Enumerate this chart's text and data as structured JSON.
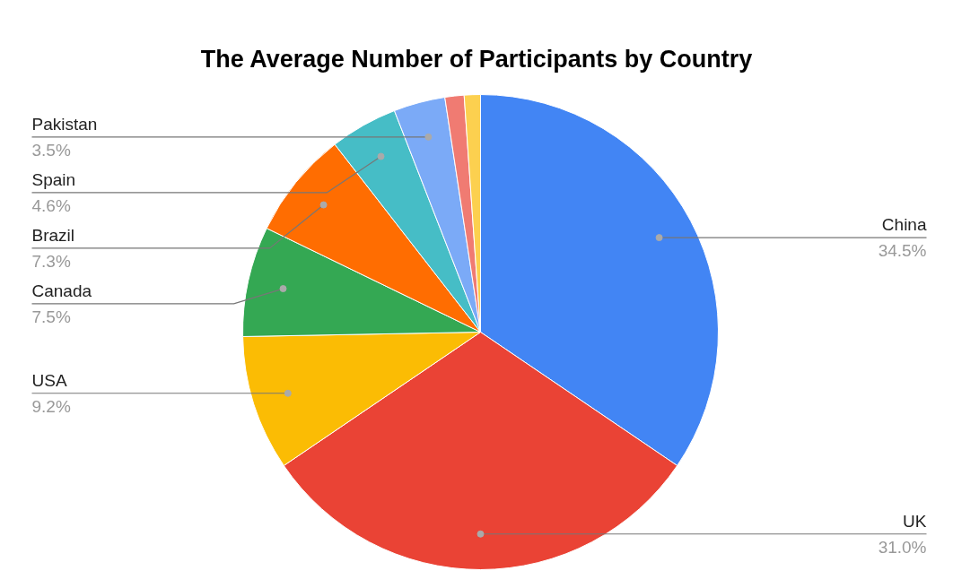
{
  "chart_data": {
    "type": "pie",
    "title": "The Average Number of Participants by Country",
    "categories": [
      "China",
      "UK",
      "USA",
      "Canada",
      "Brazil",
      "Spain",
      "Pakistan",
      null,
      null
    ],
    "values": [
      34.5,
      31.0,
      9.2,
      7.5,
      7.3,
      4.6,
      3.5,
      1.3,
      1.1
    ],
    "colors": [
      "#4285f4",
      "#ea4335",
      "#fbbc04",
      "#34a853",
      "#ff6d01",
      "#46bdc6",
      "#7baaf7",
      "#f07b72",
      "#fcd04f"
    ],
    "value_labels": [
      "34.5%",
      "31.0%",
      "9.2%",
      "7.5%",
      "7.3%",
      "4.6%",
      "3.5%",
      null,
      null
    ]
  }
}
